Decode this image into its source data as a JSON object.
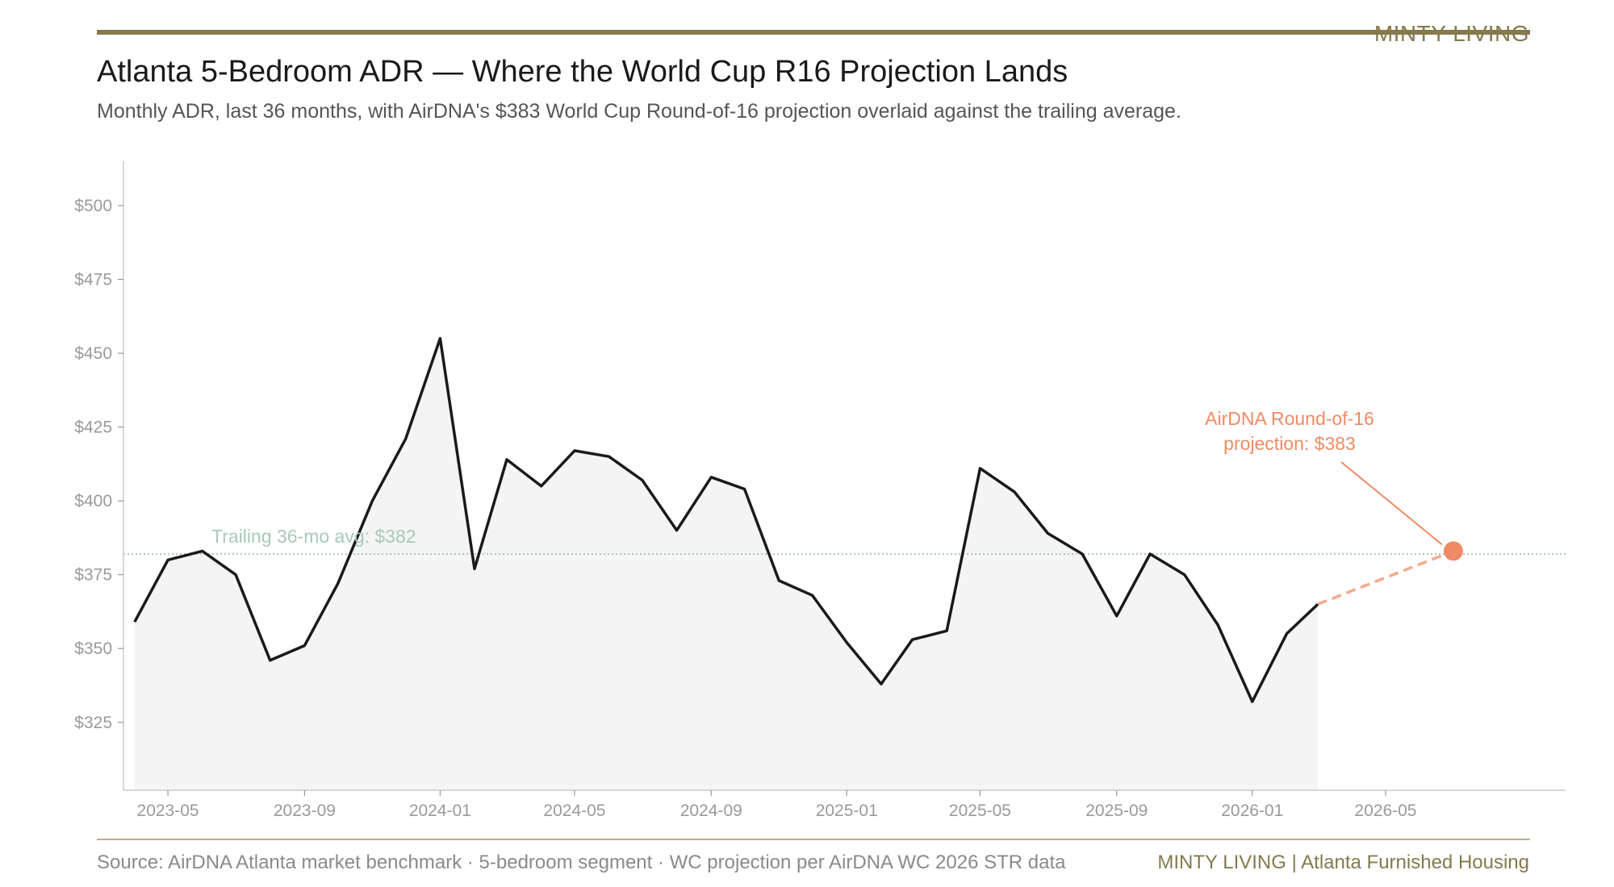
{
  "header": {
    "brand": "MINTY LIVING",
    "title": "Atlanta 5-Bedroom ADR — Where the World Cup R16 Projection Lands",
    "subtitle": "Monthly ADR, last 36 months, with AirDNA's $383 World Cup Round-of-16 projection overlaid against the trailing average."
  },
  "footer": {
    "source": "Source: AirDNA Atlanta market benchmark · 5-bedroom segment · WC projection per AirDNA WC 2026 STR data",
    "brand": "MINTY LIVING  |  Atlanta Furnished Housing"
  },
  "colors": {
    "accent": "#857a4d",
    "line": "#1a1a1a",
    "fill": "#f4f4f4",
    "average": "#a9c9b7",
    "projection": "#f08a64",
    "axis": "#cccccc"
  },
  "chart_data": {
    "type": "line",
    "x": [
      "2023-04",
      "2023-05",
      "2023-06",
      "2023-07",
      "2023-08",
      "2023-09",
      "2023-10",
      "2023-11",
      "2023-12",
      "2024-01",
      "2024-02",
      "2024-03",
      "2024-04",
      "2024-05",
      "2024-06",
      "2024-07",
      "2024-08",
      "2024-09",
      "2024-10",
      "2024-11",
      "2024-12",
      "2025-01",
      "2025-02",
      "2025-03",
      "2025-04",
      "2025-05",
      "2025-06",
      "2025-07",
      "2025-08",
      "2025-09",
      "2025-10",
      "2025-11",
      "2025-12",
      "2026-01",
      "2026-02",
      "2026-03"
    ],
    "series": [
      {
        "name": "",
        "values": [
          359,
          380,
          383,
          375,
          346,
          351,
          372,
          400,
          421,
          455,
          377,
          414,
          405,
          417,
          415,
          407,
          390,
          408,
          404,
          373,
          368,
          352,
          338,
          353,
          356,
          411,
          403,
          389,
          382,
          361,
          382,
          375,
          358,
          332,
          355,
          365
        ]
      }
    ],
    "ylim": [
      302,
      515
    ],
    "yticks": [
      325,
      350,
      375,
      400,
      425,
      450,
      475,
      500
    ],
    "ytick_labels": [
      "$325",
      "$350",
      "$375",
      "$400",
      "$425",
      "$450",
      "$475",
      "$500"
    ],
    "xlim": [
      "2023-03-22",
      "2026-10-10"
    ],
    "xticks": [
      "2023-05-01",
      "2023-09-01",
      "2024-01-01",
      "2024-05-01",
      "2024-09-01",
      "2025-01-01",
      "2025-05-01",
      "2025-09-01",
      "2026-01-01",
      "2026-05-01"
    ],
    "xtick_labels": [
      "2023-05",
      "2023-09",
      "2024-01",
      "2024-05",
      "2024-09",
      "2025-01",
      "2025-05",
      "2025-09",
      "2026-01",
      "2026-05"
    ],
    "average": {
      "value": 382,
      "label": "Trailing 36-mo avg: $382"
    },
    "projection": {
      "date": "2026-07-01",
      "value": 383,
      "label_lines": [
        "AirDNA Round-of-16",
        "projection: $383"
      ]
    },
    "grid": false,
    "legend": "none"
  }
}
